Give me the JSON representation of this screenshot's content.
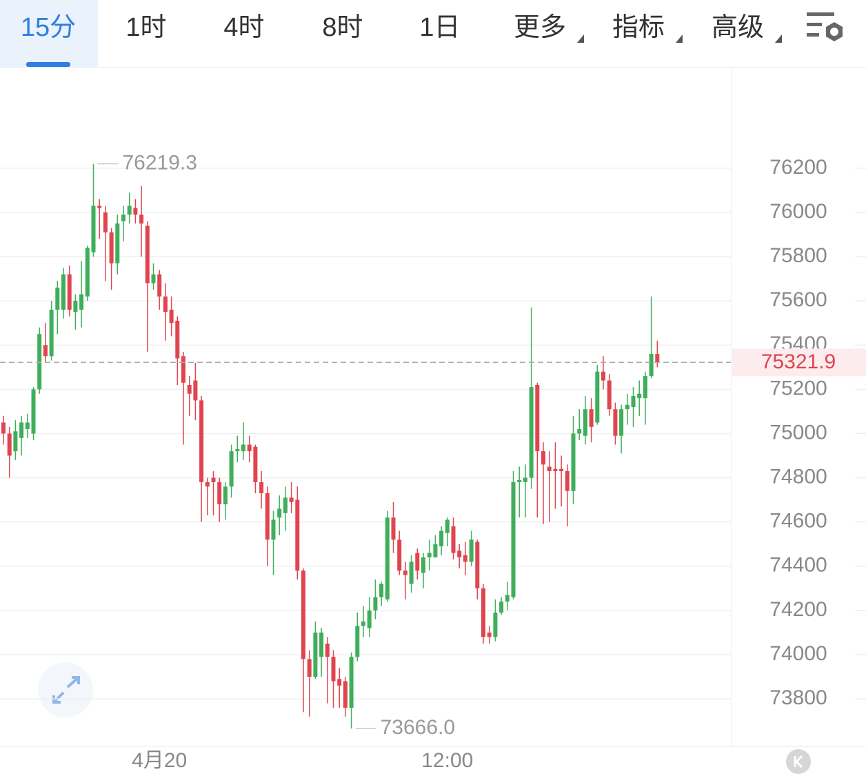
{
  "tabs": [
    {
      "label": "15分",
      "selected": true
    },
    {
      "label": "1时",
      "selected": false
    },
    {
      "label": "4时",
      "selected": false
    },
    {
      "label": "8时",
      "selected": false
    },
    {
      "label": "1日",
      "selected": false
    },
    {
      "label": "更多",
      "selected": false,
      "menu": true
    },
    {
      "label": "指标",
      "selected": false,
      "menu": true
    },
    {
      "label": "高级",
      "selected": false,
      "menu": true
    }
  ],
  "chart_data": {
    "type": "candlestick",
    "up_color": "#3fae5b",
    "down_color": "#e0454f",
    "categories": [
      null,
      null,
      null,
      null,
      null,
      null,
      null,
      null,
      null,
      null,
      null,
      null,
      null,
      null,
      null,
      null,
      null,
      null,
      null,
      null,
      null,
      null,
      null,
      null,
      null,
      null,
      "4月20",
      null,
      null,
      null,
      null,
      null,
      null,
      null,
      null,
      null,
      null,
      null,
      null,
      null,
      null,
      null,
      null,
      null,
      null,
      null,
      null,
      null,
      null,
      null,
      null,
      null,
      null,
      null,
      null,
      null,
      null,
      null,
      null,
      null,
      null,
      null,
      null,
      null,
      null,
      null,
      null,
      null,
      null,
      null,
      null,
      null,
      null,
      null,
      "12:00",
      null,
      null,
      null,
      null,
      null,
      null,
      null,
      null,
      null,
      null,
      null,
      null,
      null,
      null,
      null,
      null,
      null,
      null,
      null,
      null,
      null,
      null,
      null,
      null,
      null,
      null,
      null,
      null,
      null,
      null,
      null,
      null,
      null,
      null,
      null
    ],
    "open": [
      75050,
      75000,
      74920,
      74980,
      75020,
      75000,
      75200,
      75400,
      75350,
      75560,
      75560,
      75720,
      75550,
      75560,
      75620,
      75820,
      76030,
      76000,
      75910,
      75770,
      75960,
      75990,
      76020,
      75990,
      75940,
      75680,
      75720,
      75620,
      75560,
      75510,
      75350,
      75220,
      75240,
      75150,
      74780,
      74800,
      74780,
      74680,
      74760,
      74920,
      74920,
      74950,
      74940,
      74780,
      74730,
      74520,
      74620,
      74640,
      74710,
      74700,
      74380,
      73980,
      73900,
      73990,
      74050,
      73990,
      73890,
      73880,
      73760,
      73990,
      74130,
      74120,
      74200,
      74260,
      74250,
      74620,
      74520,
      74380,
      74320,
      74460,
      74370,
      74440,
      74440,
      74490,
      74550,
      74580,
      74470,
      74450,
      74420,
      74510,
      74300,
      74100,
      74080,
      74190,
      74240,
      74260,
      74780,
      74780,
      74800,
      75220,
      74920,
      74850,
      74840,
      74840,
      74830,
      74740,
      75000,
      74990,
      75110,
      75050,
      75280,
      75240,
      75110,
      74990,
      75110,
      75120,
      75160,
      75160,
      75260,
      75360
    ],
    "high": [
      75080,
      75030,
      75060,
      75080,
      75090,
      75210,
      75480,
      75500,
      75600,
      75690,
      75750,
      75760,
      75630,
      75780,
      75850,
      76219.3,
      76060,
      76030,
      75930,
      75990,
      76030,
      76090,
      76060,
      76120,
      75960,
      75770,
      75740,
      75680,
      75620,
      75530,
      75370,
      75260,
      75320,
      75170,
      74800,
      74830,
      74800,
      74780,
      74950,
      74990,
      75050,
      74990,
      74950,
      74830,
      74760,
      74650,
      74720,
      74760,
      74780,
      74760,
      74390,
      74020,
      74150,
      74120,
      74080,
      74020,
      73940,
      73900,
      74010,
      74190,
      74220,
      74260,
      74340,
      74330,
      74650,
      74690,
      74560,
      74420,
      74450,
      74480,
      74460,
      74520,
      74540,
      74580,
      74620,
      74620,
      74500,
      74510,
      74560,
      74520,
      74320,
      74130,
      74250,
      74260,
      74330,
      74830,
      74850,
      74860,
      75570,
      75230,
      74960,
      74920,
      74960,
      74900,
      74860,
      75080,
      75110,
      75170,
      75160,
      75310,
      75350,
      75270,
      75140,
      75130,
      75180,
      75210,
      75240,
      75280,
      75620,
      75420
    ],
    "low": [
      74950,
      74800,
      74880,
      74900,
      74980,
      74970,
      75180,
      75320,
      75330,
      75450,
      75520,
      75530,
      75470,
      75480,
      75600,
      75800,
      75880,
      75690,
      75650,
      75720,
      75870,
      75950,
      75950,
      75800,
      75370,
      75650,
      75560,
      75420,
      75440,
      75220,
      74950,
      75080,
      75060,
      74600,
      74630,
      74630,
      74600,
      74610,
      74710,
      74870,
      74880,
      74870,
      74730,
      74660,
      74400,
      74360,
      74540,
      74560,
      74640,
      74340,
      73740,
      73720,
      73890,
      73900,
      73780,
      73760,
      73760,
      73720,
      73666,
      73970,
      74080,
      74080,
      74160,
      74220,
      74240,
      74460,
      74360,
      74250,
      74280,
      74340,
      74300,
      74380,
      74440,
      74450,
      74490,
      74430,
      74390,
      74360,
      74400,
      74250,
      74050,
      74050,
      74060,
      74180,
      74200,
      74250,
      74620,
      74620,
      74750,
      74620,
      74590,
      74600,
      74660,
      74670,
      74580,
      74680,
      74970,
      74950,
      74960,
      75040,
      75200,
      75080,
      74950,
      74910,
      75040,
      75030,
      75080,
      75040,
      75250,
      75300
    ],
    "close": [
      75000,
      74900,
      75010,
      75050,
      75050,
      75200,
      75450,
      75350,
      75560,
      75660,
      75720,
      75560,
      75600,
      75630,
      75840,
      76030,
      76020,
      75910,
      75770,
      75950,
      75990,
      76030,
      75990,
      75950,
      75680,
      75720,
      75620,
      75550,
      75500,
      75340,
      75230,
      75180,
      75150,
      74780,
      74760,
      74780,
      74680,
      74760,
      74920,
      74930,
      74950,
      74920,
      74780,
      74730,
      74520,
      74610,
      74660,
      74710,
      74690,
      74380,
      73980,
      73900,
      74100,
      74100,
      73990,
      73880,
      73860,
      73760,
      73990,
      74130,
      74150,
      74200,
      74260,
      74320,
      74620,
      74520,
      74380,
      74360,
      74420,
      74380,
      74440,
      74460,
      74500,
      74560,
      74610,
      74460,
      74440,
      74420,
      74520,
      74300,
      74080,
      74080,
      74190,
      74240,
      74270,
      74780,
      74790,
      74800,
      75210,
      74920,
      74860,
      74830,
      74830,
      74830,
      74740,
      75000,
      75020,
      75110,
      75030,
      75280,
      75240,
      75110,
      74990,
      75110,
      75130,
      75170,
      75180,
      75260,
      75360,
      75321.9
    ],
    "high_annotation": 76219.3,
    "low_annotation": {
      "value": 73666,
      "label": "73666.0"
    },
    "last_price": 75321.9,
    "ylim": [
      73585,
      76655
    ],
    "yticks": [
      73800,
      74000,
      74200,
      74400,
      74600,
      74800,
      75000,
      75200,
      75400,
      75600,
      75800,
      76000,
      76200
    ],
    "grid": true
  }
}
